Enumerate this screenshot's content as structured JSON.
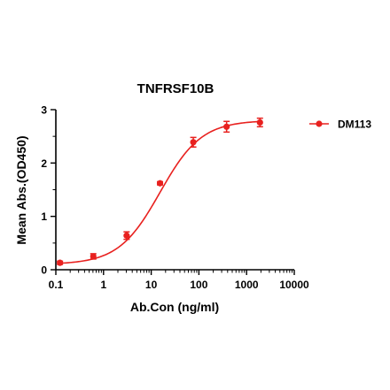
{
  "chart_data": {
    "type": "line",
    "title": "TNFRSF10B",
    "xlabel": "Ab.Con (ng/ml)",
    "ylabel": "Mean Abs.(OD450)",
    "xscale": "log",
    "xlim": [
      0.1,
      10000
    ],
    "ylim": [
      0,
      3
    ],
    "x_ticks": [
      0.1,
      1,
      10,
      100,
      1000,
      10000
    ],
    "x_tick_labels": [
      "0.1",
      "1",
      "10",
      "100",
      "1000",
      "10000"
    ],
    "y_ticks": [
      0,
      1,
      2,
      3
    ],
    "y_tick_labels": [
      "0",
      "1",
      "2",
      "3"
    ],
    "grid": false,
    "legend_position": "top-right",
    "color": "#e8211f",
    "series": [
      {
        "name": "DM113",
        "x": [
          0.122,
          0.61,
          3.05,
          15.3,
          76.3,
          381,
          1907
        ],
        "y": [
          0.13,
          0.25,
          0.64,
          1.62,
          2.39,
          2.68,
          2.76
        ],
        "error": [
          0.03,
          0.05,
          0.07,
          0.03,
          0.09,
          0.1,
          0.08
        ]
      }
    ],
    "fit": {
      "model": "4PL",
      "bottom": 0.1,
      "top": 2.8,
      "ec50": 15.3,
      "hill": 1.0
    }
  }
}
